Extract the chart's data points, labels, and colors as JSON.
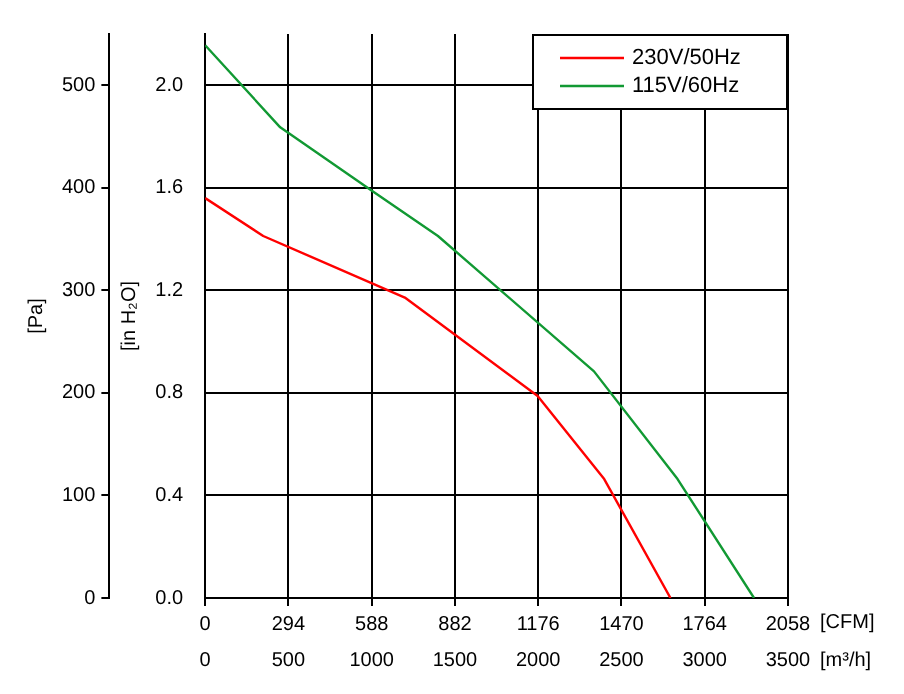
{
  "chart_data": {
    "type": "line",
    "xlabel": "[CFM]",
    "x2label": "[m³/h]",
    "ylabel": "[Pa]",
    "y2label": "[in H₂O]",
    "series": [
      {
        "name": "230V/50Hz",
        "color": "#ff0000",
        "x": [
          0,
          205,
          705,
          1174,
          1409,
          1643
        ],
        "values": [
          390,
          353,
          293,
          197,
          116,
          0
        ]
      },
      {
        "name": "115V/60Hz",
        "color": "#119933",
        "x": [
          0,
          265,
          590,
          822,
          1373,
          1668,
          1938
        ],
        "values": [
          539,
          459,
          397,
          353,
          221,
          116,
          0
        ]
      }
    ],
    "xlim": [
      0,
      2058
    ],
    "xticks": [
      0,
      294,
      588,
      882,
      1176,
      1470,
      1764,
      2058
    ],
    "x2lim": [
      0,
      3500
    ],
    "x2ticks": [
      0,
      500,
      1000,
      1500,
      2000,
      2500,
      3000,
      3500
    ],
    "ylim": [
      0,
      550
    ],
    "yticks": [
      0,
      100,
      200,
      300,
      400,
      500
    ],
    "y2lim": [
      0,
      2.2
    ],
    "y2ticks": [
      {
        "value": 0,
        "label": "0.0"
      },
      0.4,
      0.8,
      1.2,
      1.6,
      {
        "value": 2,
        "label": "2.0"
      }
    ],
    "grid": true,
    "legend": "top right",
    "marker": "none",
    "line_style": "solid"
  }
}
